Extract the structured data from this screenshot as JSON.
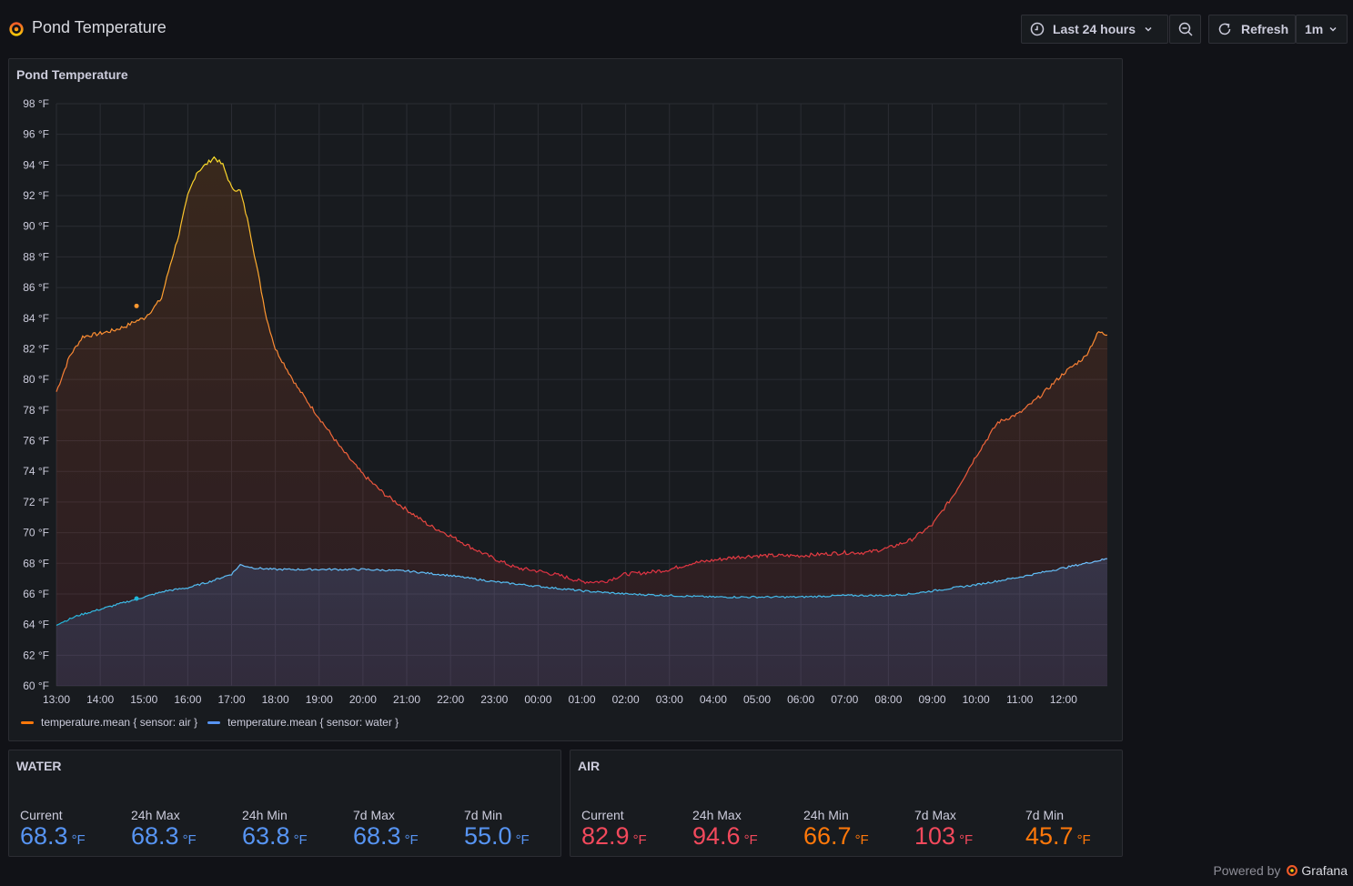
{
  "dashboard": {
    "title": "Pond Temperature"
  },
  "toolbar": {
    "time_range": "Last 24 hours",
    "refresh_label": "Refresh",
    "interval": "1m"
  },
  "chart_panel": {
    "title": "Pond Temperature"
  },
  "chart_data": {
    "type": "line",
    "title": "Pond Temperature",
    "unit": "°F",
    "ylim": [
      60,
      98
    ],
    "yticks": [
      "60 °F",
      "62 °F",
      "64 °F",
      "66 °F",
      "68 °F",
      "70 °F",
      "72 °F",
      "74 °F",
      "76 °F",
      "78 °F",
      "80 °F",
      "82 °F",
      "84 °F",
      "86 °F",
      "88 °F",
      "90 °F",
      "92 °F",
      "94 °F",
      "96 °F",
      "98 °F"
    ],
    "xticks": [
      "13:00",
      "14:00",
      "15:00",
      "16:00",
      "17:00",
      "18:00",
      "19:00",
      "20:00",
      "21:00",
      "22:00",
      "23:00",
      "00:00",
      "01:00",
      "02:00",
      "03:00",
      "04:00",
      "05:00",
      "06:00",
      "07:00",
      "08:00",
      "09:00",
      "10:00",
      "11:00",
      "12:00"
    ],
    "x_range_hours": [
      0,
      24
    ],
    "grid": true,
    "legend_position": "bottom-left",
    "series": [
      {
        "name": "temperature.mean { sensor: air }",
        "color": "#ff780a",
        "points": [
          [
            0,
            79.2
          ],
          [
            0.3,
            81.5
          ],
          [
            0.6,
            82.8
          ],
          [
            1,
            83
          ],
          [
            1.3,
            83.2
          ],
          [
            1.6,
            83.5
          ],
          [
            1.8,
            83.8
          ],
          [
            2,
            84
          ],
          [
            2.2,
            84.6
          ],
          [
            2.4,
            85.3
          ],
          [
            2.6,
            87.5
          ],
          [
            2.8,
            89.5
          ],
          [
            3,
            92
          ],
          [
            3.2,
            93.5
          ],
          [
            3.4,
            94
          ],
          [
            3.6,
            94.5
          ],
          [
            3.8,
            94
          ],
          [
            4,
            92.5
          ],
          [
            4.2,
            92.3
          ],
          [
            4.4,
            90
          ],
          [
            4.6,
            87
          ],
          [
            4.8,
            84
          ],
          [
            5,
            82
          ],
          [
            5.5,
            79.5
          ],
          [
            6,
            77.5
          ],
          [
            6.5,
            75.5
          ],
          [
            7,
            73.8
          ],
          [
            7.5,
            72.5
          ],
          [
            8,
            71.5
          ],
          [
            8.5,
            70.5
          ],
          [
            9,
            69.8
          ],
          [
            9.5,
            69
          ],
          [
            10,
            68.3
          ],
          [
            10.5,
            67.7
          ],
          [
            11,
            67.5
          ],
          [
            11.5,
            67.2
          ],
          [
            12,
            66.8
          ],
          [
            12.5,
            66.8
          ],
          [
            13,
            67.3
          ],
          [
            13.5,
            67.4
          ],
          [
            14,
            67.6
          ],
          [
            14.5,
            68
          ],
          [
            15,
            68.2
          ],
          [
            15.5,
            68.4
          ],
          [
            16,
            68.5
          ],
          [
            16.5,
            68.5
          ],
          [
            17,
            68.5
          ],
          [
            17.5,
            68.6
          ],
          [
            18,
            68.7
          ],
          [
            18.5,
            68.7
          ],
          [
            19,
            69
          ],
          [
            19.5,
            69.5
          ],
          [
            20,
            70.5
          ],
          [
            20.5,
            72.5
          ],
          [
            21,
            75
          ],
          [
            21.5,
            77.2
          ],
          [
            22,
            77.8
          ],
          [
            22.5,
            79
          ],
          [
            23,
            80.4
          ],
          [
            23.5,
            81.5
          ],
          [
            23.8,
            83.1
          ],
          [
            24,
            82.9
          ]
        ]
      },
      {
        "name": "temperature.mean { sensor: water }",
        "color": "#5794f2",
        "points": [
          [
            0,
            64
          ],
          [
            0.5,
            64.6
          ],
          [
            1,
            65
          ],
          [
            1.5,
            65.4
          ],
          [
            2,
            65.8
          ],
          [
            2.5,
            66.2
          ],
          [
            3,
            66.4
          ],
          [
            3.5,
            66.8
          ],
          [
            4,
            67.3
          ],
          [
            4.2,
            67.9
          ],
          [
            4.5,
            67.7
          ],
          [
            5,
            67.6
          ],
          [
            6,
            67.6
          ],
          [
            7,
            67.6
          ],
          [
            8,
            67.5
          ],
          [
            9,
            67.2
          ],
          [
            10,
            66.8
          ],
          [
            11,
            66.5
          ],
          [
            12,
            66.2
          ],
          [
            13,
            66
          ],
          [
            14,
            65.9
          ],
          [
            15,
            65.8
          ],
          [
            16,
            65.8
          ],
          [
            17,
            65.8
          ],
          [
            18,
            65.9
          ],
          [
            19,
            65.9
          ],
          [
            19.5,
            66
          ],
          [
            20,
            66.2
          ],
          [
            21,
            66.6
          ],
          [
            22,
            67.1
          ],
          [
            23,
            67.7
          ],
          [
            24,
            68.3
          ]
        ]
      }
    ]
  },
  "water_panel": {
    "title": "WATER",
    "stats": [
      {
        "label": "Current",
        "value": "68.3",
        "unit": "°F",
        "color": "#5794f2"
      },
      {
        "label": "24h Max",
        "value": "68.3",
        "unit": "°F",
        "color": "#5794f2"
      },
      {
        "label": "24h Min",
        "value": "63.8",
        "unit": "°F",
        "color": "#5794f2"
      },
      {
        "label": "7d Max",
        "value": "68.3",
        "unit": "°F",
        "color": "#5794f2"
      },
      {
        "label": "7d Min",
        "value": "55.0",
        "unit": "°F",
        "color": "#5794f2"
      }
    ]
  },
  "air_panel": {
    "title": "AIR",
    "stats": [
      {
        "label": "Current",
        "value": "82.9",
        "unit": "°F",
        "color": "#f2495c"
      },
      {
        "label": "24h Max",
        "value": "94.6",
        "unit": "°F",
        "color": "#f2495c"
      },
      {
        "label": "24h Min",
        "value": "66.7",
        "unit": "°F",
        "color": "#ff780a"
      },
      {
        "label": "7d Max",
        "value": "103",
        "unit": "°F",
        "color": "#f2495c"
      },
      {
        "label": "7d Min",
        "value": "45.7",
        "unit": "°F",
        "color": "#ff780a"
      }
    ]
  },
  "footer": {
    "powered_by": "Powered by",
    "brand": "Grafana"
  }
}
